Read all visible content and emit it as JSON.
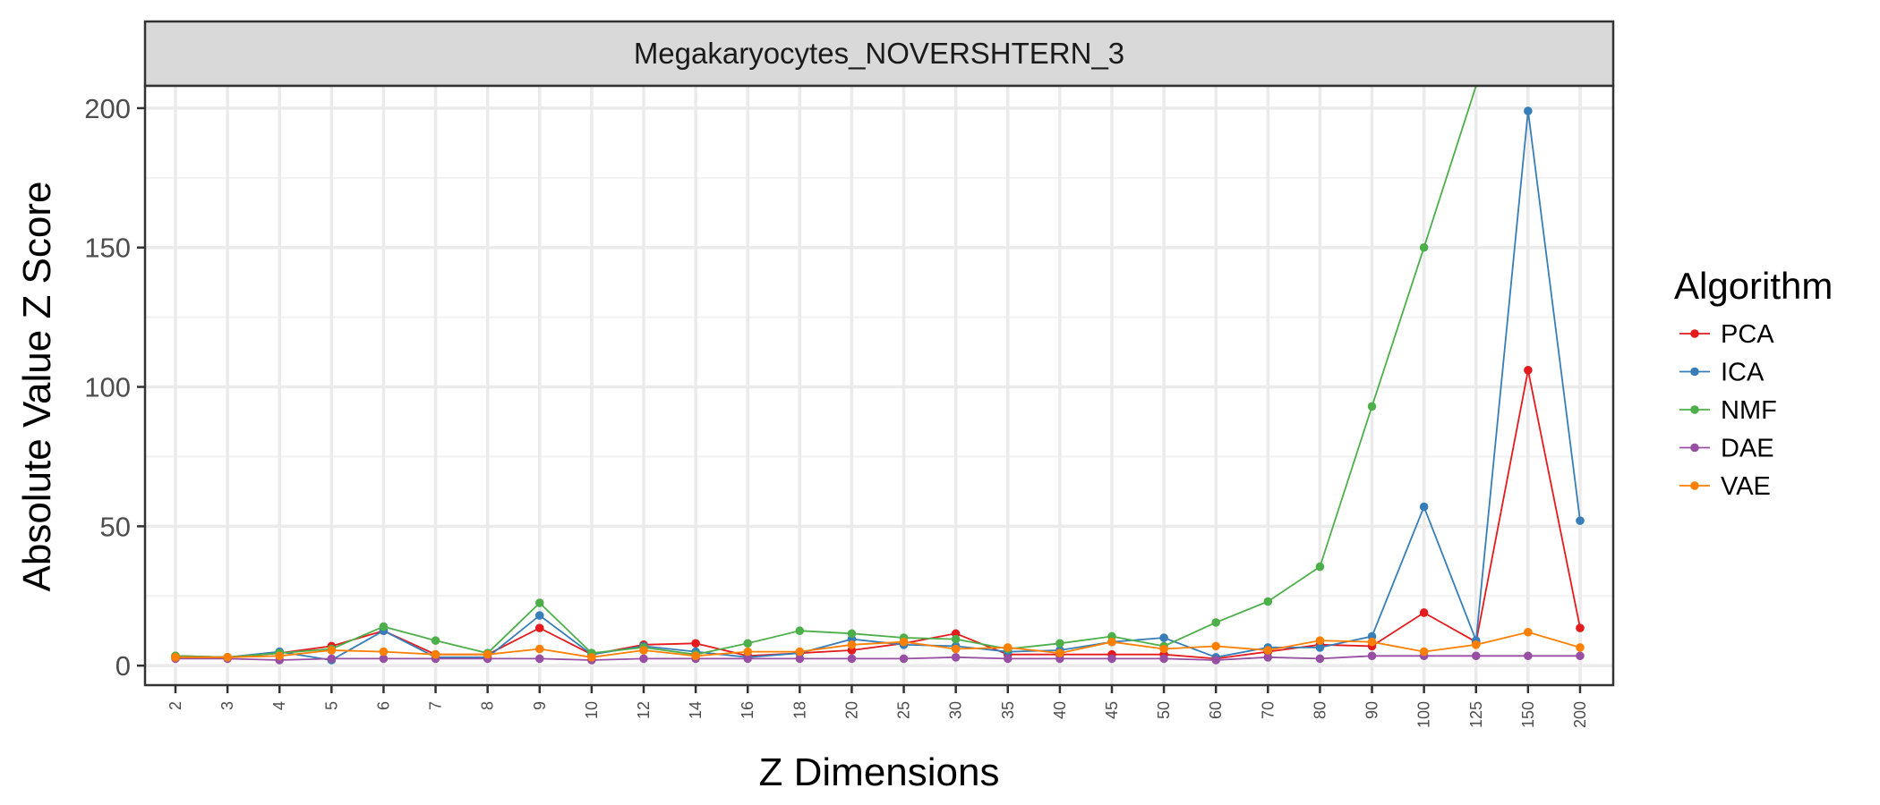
{
  "chart_data": {
    "type": "line",
    "title": "Megakaryocytes_NOVERSHTERN_3",
    "xlabel": "Z Dimensions",
    "ylabel": "Absolute Value Z Score",
    "categories": [
      "2",
      "3",
      "4",
      "5",
      "6",
      "7",
      "8",
      "9",
      "10",
      "12",
      "14",
      "16",
      "18",
      "20",
      "25",
      "30",
      "35",
      "40",
      "45",
      "50",
      "60",
      "70",
      "80",
      "90",
      "100",
      "125",
      "150",
      "200"
    ],
    "ylim": [
      -7,
      208
    ],
    "yticks": [
      0,
      50,
      100,
      150,
      200
    ],
    "grid": true,
    "legend": {
      "title": "Algorithm",
      "position": "right"
    },
    "series": [
      {
        "name": "PCA",
        "color": "#E41A1C",
        "values": [
          3.5,
          3.0,
          4.5,
          7.0,
          12.5,
          4.0,
          4.0,
          13.5,
          4.0,
          7.5,
          8.0,
          3.5,
          4.5,
          5.5,
          8.0,
          11.5,
          4.0,
          4.0,
          4.0,
          4.0,
          2.5,
          5.0,
          7.5,
          7.0,
          19.0,
          8.5,
          106.0,
          13.5
        ]
      },
      {
        "name": "ICA",
        "color": "#377EB8",
        "values": [
          3.0,
          3.0,
          5.0,
          2.0,
          12.5,
          3.0,
          3.0,
          18.0,
          4.0,
          7.0,
          5.0,
          3.0,
          4.5,
          9.5,
          7.5,
          7.0,
          5.0,
          5.5,
          8.5,
          10.0,
          3.0,
          6.5,
          6.5,
          10.5,
          57.0,
          9.0,
          199.0,
          52.0
        ]
      },
      {
        "name": "NMF",
        "color": "#4DAF4A",
        "values": [
          3.5,
          3.0,
          4.5,
          6.0,
          14.0,
          9.0,
          4.5,
          22.5,
          4.5,
          6.5,
          4.0,
          8.0,
          12.5,
          11.5,
          10.0,
          9.5,
          6.0,
          8.0,
          10.5,
          7.0,
          15.5,
          23.0,
          35.5,
          93.0,
          150.0,
          208.0,
          208.0,
          208.0
        ]
      },
      {
        "name": "DAE",
        "color": "#984EA3",
        "values": [
          2.5,
          2.5,
          2.0,
          2.5,
          2.5,
          2.5,
          2.5,
          2.5,
          2.0,
          2.5,
          2.5,
          2.5,
          2.5,
          2.5,
          2.5,
          3.0,
          2.5,
          2.5,
          2.5,
          2.5,
          2.0,
          3.0,
          2.5,
          3.5,
          3.5,
          3.5,
          3.5,
          3.5
        ]
      },
      {
        "name": "VAE",
        "color": "#FF7F00",
        "values": [
          3.0,
          3.0,
          3.5,
          5.5,
          5.0,
          4.0,
          4.0,
          6.0,
          3.0,
          5.5,
          3.5,
          5.0,
          5.0,
          7.5,
          8.5,
          6.0,
          6.5,
          4.5,
          8.5,
          6.0,
          7.0,
          5.5,
          9.0,
          8.5,
          5.0,
          7.5,
          12.0,
          6.5
        ]
      }
    ],
    "visible_points": [
      28,
      28,
      25,
      28,
      28
    ]
  }
}
